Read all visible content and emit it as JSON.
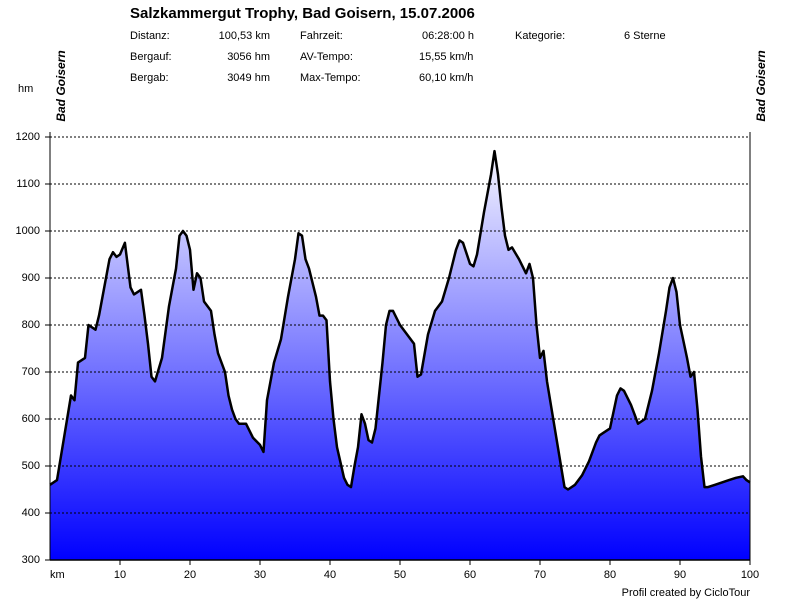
{
  "chart_data": {
    "type": "area",
    "title": "Salzkammergut Trophy, Bad Goisern, 15.07.2006",
    "stats": [
      {
        "label": "Distanz:",
        "value": "100,53 km"
      },
      {
        "label": "Bergauf:",
        "value": "3056 hm"
      },
      {
        "label": "Bergab:",
        "value": "3049 hm"
      },
      {
        "label": "Fahrzeit:",
        "value": "06:28:00 h"
      },
      {
        "label": "AV-Tempo:",
        "value": "15,55 km/h"
      },
      {
        "label": "Max-Tempo:",
        "value": "60,10 km/h"
      },
      {
        "label": "Kategorie:",
        "value": "6 Sterne"
      }
    ],
    "start_label": "Bad Goisern",
    "end_label": "Bad Goisern",
    "y_label": "hm",
    "x_label": "km",
    "credit": "Profil created by CicloTour",
    "color": "#000000",
    "fill_colors": [
      "#ffffff",
      "#0000ff"
    ],
    "grid": true,
    "xlim": [
      0,
      100
    ],
    "ylim": [
      300,
      1200
    ],
    "xticks": [
      10,
      20,
      30,
      40,
      50,
      60,
      70,
      80,
      90,
      100
    ],
    "yticks": [
      300,
      400,
      500,
      600,
      700,
      800,
      900,
      1000,
      1100,
      1200
    ],
    "x": [
      0,
      1,
      2,
      3,
      3.5,
      4,
      5,
      5.5,
      6.5,
      7,
      8,
      8.5,
      9,
      9.5,
      10,
      10.7,
      11.5,
      12,
      13,
      13.5,
      14,
      14.5,
      15,
      16,
      17,
      18,
      18.5,
      19,
      19.5,
      20,
      20.5,
      21,
      21.5,
      22,
      23,
      23.5,
      24,
      25,
      25.5,
      26,
      26.5,
      27,
      28,
      29,
      30,
      30.5,
      31,
      32,
      33,
      34,
      35,
      35.5,
      36,
      36.5,
      37,
      38,
      38.5,
      39,
      39.5,
      40,
      40.5,
      41,
      42,
      42.5,
      43,
      43.5,
      44,
      44.5,
      45,
      45.5,
      46,
      46.5,
      47,
      47.5,
      48,
      48.5,
      49,
      50,
      51,
      52,
      52.5,
      53,
      54,
      55,
      56,
      57,
      58,
      58.5,
      59,
      60,
      60.5,
      61,
      62,
      63,
      63.5,
      64,
      64.5,
      65,
      65.5,
      66,
      67,
      68,
      68.5,
      69,
      69.5,
      70,
      70.5,
      71,
      72,
      73,
      73.5,
      74,
      75,
      76,
      77,
      78,
      78.5,
      79,
      80,
      81,
      81.5,
      82,
      83,
      84,
      85,
      86,
      87,
      88,
      88.5,
      89,
      89.5,
      90,
      90.5,
      91,
      91.5,
      92,
      92.5,
      93,
      93.5,
      94,
      95,
      96,
      97,
      98,
      99,
      99.5,
      100
    ],
    "values": [
      460,
      470,
      560,
      650,
      640,
      720,
      730,
      800,
      790,
      820,
      900,
      940,
      955,
      945,
      950,
      975,
      880,
      865,
      875,
      820,
      760,
      690,
      680,
      730,
      840,
      920,
      990,
      1000,
      990,
      960,
      875,
      910,
      900,
      850,
      830,
      780,
      740,
      700,
      650,
      620,
      600,
      590,
      590,
      560,
      545,
      530,
      640,
      720,
      770,
      860,
      940,
      995,
      990,
      940,
      920,
      860,
      820,
      820,
      810,
      680,
      600,
      540,
      475,
      460,
      455,
      500,
      540,
      610,
      590,
      555,
      550,
      580,
      650,
      720,
      800,
      830,
      830,
      800,
      780,
      760,
      690,
      695,
      780,
      830,
      850,
      900,
      960,
      980,
      975,
      930,
      925,
      950,
      1040,
      1120,
      1170,
      1120,
      1050,
      990,
      960,
      965,
      940,
      910,
      930,
      900,
      800,
      730,
      745,
      680,
      590,
      500,
      455,
      450,
      460,
      480,
      510,
      550,
      565,
      570,
      580,
      650,
      665,
      660,
      630,
      590,
      600,
      660,
      740,
      830,
      880,
      900,
      870,
      800,
      765,
      730,
      690,
      700,
      620,
      520,
      455,
      455,
      460,
      465,
      470,
      475,
      478,
      470,
      465
    ]
  }
}
